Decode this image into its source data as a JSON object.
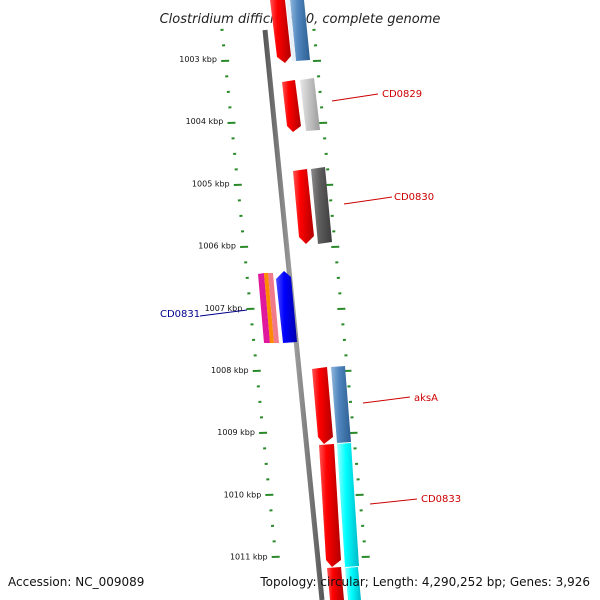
{
  "title": "Clostridium difficile 630, complete genome",
  "accession": "Accession: NC_009089",
  "summary": "Topology: circular; Length: 4,290,252 bp; Genes: 3,926",
  "colors": {
    "backbone": "#808080",
    "ticks": "#2a8a2a",
    "forward_label": "#cc0000",
    "reverse_label": "#00008b"
  },
  "scale_labels": [
    "1003 kbp",
    "1004 kbp",
    "1005 kbp",
    "1006 kbp",
    "1007 kbp",
    "1008 kbp",
    "1009 kbp",
    "1010 kbp",
    "1011 kbp"
  ],
  "gene_labels": [
    {
      "text": "CD0829",
      "strand": "forward"
    },
    {
      "text": "CD0830",
      "strand": "forward"
    },
    {
      "text": "CD0831",
      "strand": "reverse"
    },
    {
      "text": "aksA",
      "strand": "forward"
    },
    {
      "text": "CD0833",
      "strand": "forward"
    }
  ]
}
